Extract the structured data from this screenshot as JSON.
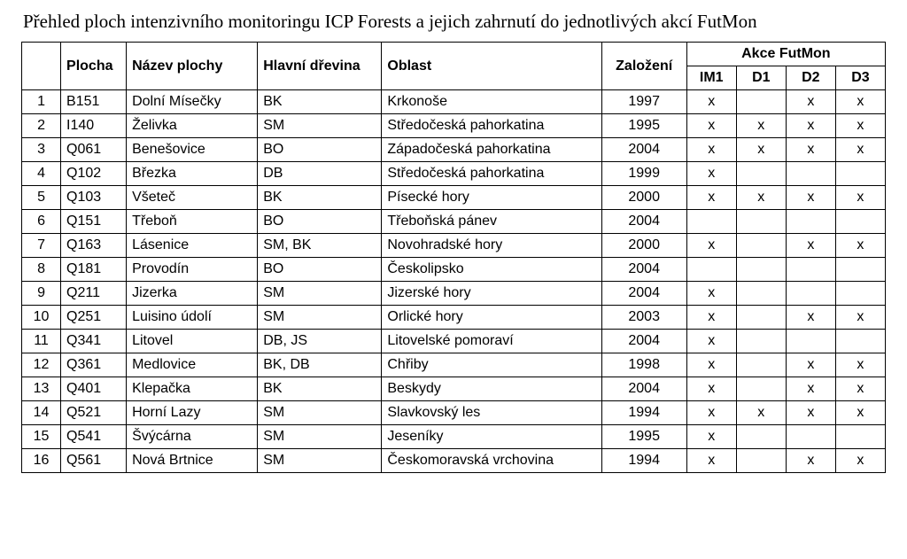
{
  "title": "Přehled ploch intenzivního monitoringu ICP Forests a jejich zahrnutí do jednotlivých akcí FutMon",
  "headers": {
    "idx": "",
    "code": "Plocha",
    "name": "Název plochy",
    "species": "Hlavní dřevina",
    "area": "Oblast",
    "year": "Založení",
    "actions_group": "Akce FutMon",
    "actions": [
      "IM1",
      "D1",
      "D2",
      "D3"
    ]
  },
  "mark": "x",
  "rows": [
    {
      "n": 1,
      "code": "B151",
      "name": "Dolní Mísečky",
      "species": "BK",
      "area": "Krkonoše",
      "year": 1997,
      "acts": [
        true,
        false,
        true,
        true
      ]
    },
    {
      "n": 2,
      "code": "I140",
      "name": "Želivka",
      "species": "SM",
      "area": "Středočeská pahorkatina",
      "year": 1995,
      "acts": [
        true,
        true,
        true,
        true
      ]
    },
    {
      "n": 3,
      "code": "Q061",
      "name": "Benešovice",
      "species": "BO",
      "area": "Západočeská pahorkatina",
      "year": 2004,
      "acts": [
        true,
        true,
        true,
        true
      ]
    },
    {
      "n": 4,
      "code": "Q102",
      "name": "Březka",
      "species": "DB",
      "area": "Středočeská pahorkatina",
      "year": 1999,
      "acts": [
        true,
        false,
        false,
        false
      ]
    },
    {
      "n": 5,
      "code": "Q103",
      "name": "Všeteč",
      "species": "BK",
      "area": "Písecké hory",
      "year": 2000,
      "acts": [
        true,
        true,
        true,
        true
      ]
    },
    {
      "n": 6,
      "code": "Q151",
      "name": "Třeboň",
      "species": "BO",
      "area": "Třeboňská pánev",
      "year": 2004,
      "acts": [
        false,
        false,
        false,
        false
      ]
    },
    {
      "n": 7,
      "code": "Q163",
      "name": "Lásenice",
      "species": "SM, BK",
      "area": "Novohradské hory",
      "year": 2000,
      "acts": [
        true,
        false,
        true,
        true
      ]
    },
    {
      "n": 8,
      "code": "Q181",
      "name": "Provodín",
      "species": "BO",
      "area": "Českolipsko",
      "year": 2004,
      "acts": [
        false,
        false,
        false,
        false
      ]
    },
    {
      "n": 9,
      "code": "Q211",
      "name": "Jizerka",
      "species": "SM",
      "area": "Jizerské hory",
      "year": 2004,
      "acts": [
        true,
        false,
        false,
        false
      ]
    },
    {
      "n": 10,
      "code": "Q251",
      "name": "Luisino údolí",
      "species": "SM",
      "area": "Orlické hory",
      "year": 2003,
      "acts": [
        true,
        false,
        true,
        true
      ]
    },
    {
      "n": 11,
      "code": "Q341",
      "name": "Litovel",
      "species": "DB, JS",
      "area": "Litovelské pomoraví",
      "year": 2004,
      "acts": [
        true,
        false,
        false,
        false
      ]
    },
    {
      "n": 12,
      "code": "Q361",
      "name": "Medlovice",
      "species": "BK, DB",
      "area": "Chřiby",
      "year": 1998,
      "acts": [
        true,
        false,
        true,
        true
      ]
    },
    {
      "n": 13,
      "code": "Q401",
      "name": "Klepačka",
      "species": "BK",
      "area": "Beskydy",
      "year": 2004,
      "acts": [
        true,
        false,
        true,
        true
      ]
    },
    {
      "n": 14,
      "code": "Q521",
      "name": "Horní Lazy",
      "species": "SM",
      "area": "Slavkovský les",
      "year": 1994,
      "acts": [
        true,
        true,
        true,
        true
      ]
    },
    {
      "n": 15,
      "code": "Q541",
      "name": "Švýcárna",
      "species": "SM",
      "area": "Jeseníky",
      "year": 1995,
      "acts": [
        true,
        false,
        false,
        false
      ]
    },
    {
      "n": 16,
      "code": "Q561",
      "name": "Nová Brtnice",
      "species": "SM",
      "area": "Českomoravská vrchovina",
      "year": 1994,
      "acts": [
        true,
        false,
        true,
        true
      ]
    }
  ],
  "style": {
    "border_color": "#000000",
    "background_color": "#ffffff",
    "title_font": "Times New Roman",
    "title_fontsize_pt": 16,
    "body_font": "Arial",
    "body_fontsize_pt": 12
  }
}
